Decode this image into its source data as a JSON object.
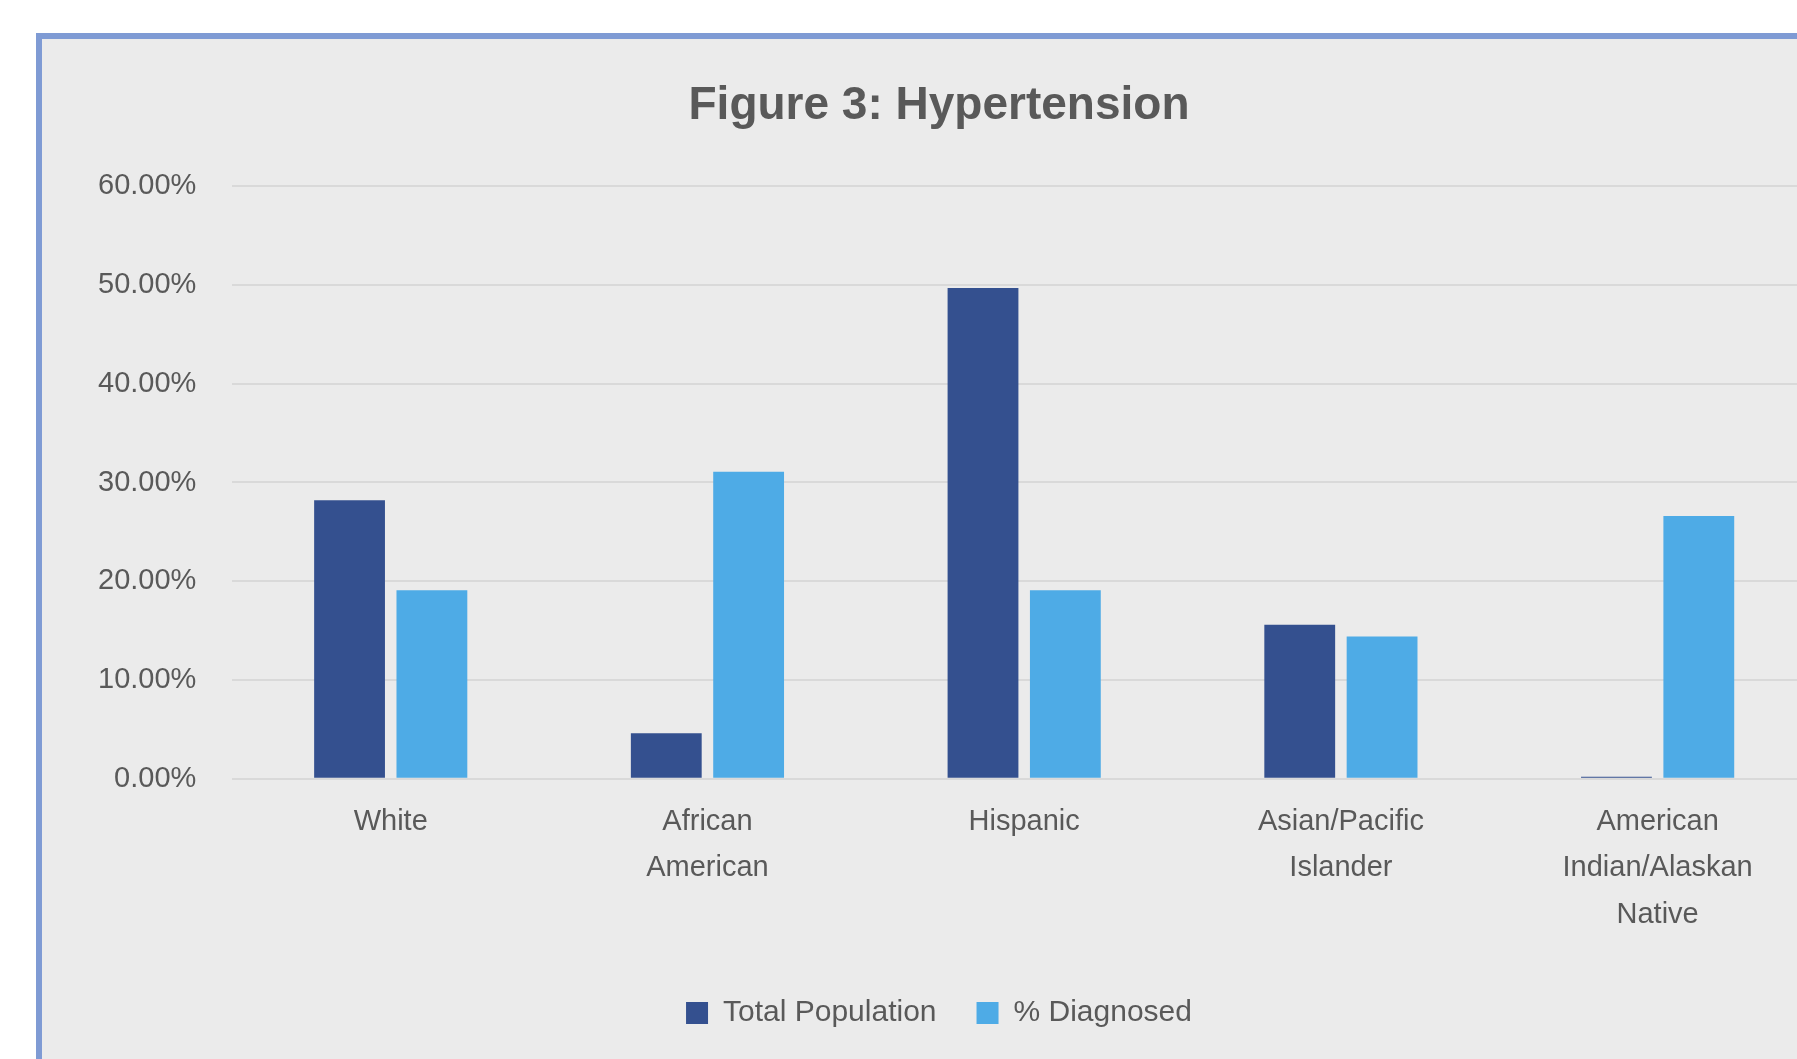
{
  "chart_data": {
    "type": "bar",
    "title": "Figure 3: Hypertension",
    "categories": [
      "White",
      "African American",
      "Hispanic",
      "Asian/Pacific Islander",
      "American Indian/Alaskan Native"
    ],
    "series": [
      {
        "name": "Total Population",
        "color": "#34508f",
        "values": [
          28.2,
          4.6,
          49.7,
          15.6,
          0.2
        ]
      },
      {
        "name": "% Diagnosed",
        "color": "#4eabe6",
        "values": [
          19.1,
          31.1,
          19.1,
          14.4,
          26.6
        ]
      }
    ],
    "ylim": [
      0,
      60
    ],
    "yticks": [
      {
        "value": 0,
        "label": "0.00%"
      },
      {
        "value": 10,
        "label": "10.00%"
      },
      {
        "value": 20,
        "label": "20.00%"
      },
      {
        "value": 30,
        "label": "30.00%"
      },
      {
        "value": 40,
        "label": "40.00%"
      },
      {
        "value": 50,
        "label": "50.00%"
      },
      {
        "value": 60,
        "label": "60.00%"
      }
    ],
    "grid": "y",
    "legend": "bottom"
  }
}
